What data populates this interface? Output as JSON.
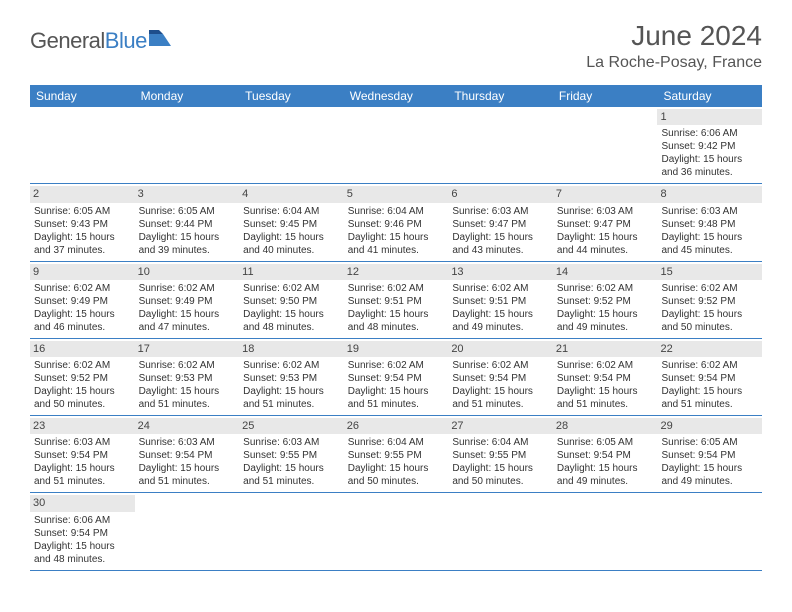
{
  "brand": {
    "name_a": "General",
    "name_b": "Blue"
  },
  "title": "June 2024",
  "location": "La Roche-Posay, France",
  "colors": {
    "header_bg": "#3b7fc4",
    "header_text": "#ffffff",
    "daynum_bg": "#e8e8e8",
    "text": "#333333",
    "title_text": "#555555",
    "row_divider": "#3b7fc4"
  },
  "typography": {
    "title_fontsize": 28,
    "location_fontsize": 16,
    "dow_fontsize": 12,
    "cell_fontsize": 10
  },
  "days_of_week": [
    "Sunday",
    "Monday",
    "Tuesday",
    "Wednesday",
    "Thursday",
    "Friday",
    "Saturday"
  ],
  "weeks": [
    [
      null,
      null,
      null,
      null,
      null,
      null,
      {
        "n": "1",
        "sunrise": "Sunrise: 6:06 AM",
        "sunset": "Sunset: 9:42 PM",
        "d1": "Daylight: 15 hours",
        "d2": "and 36 minutes."
      }
    ],
    [
      {
        "n": "2",
        "sunrise": "Sunrise: 6:05 AM",
        "sunset": "Sunset: 9:43 PM",
        "d1": "Daylight: 15 hours",
        "d2": "and 37 minutes."
      },
      {
        "n": "3",
        "sunrise": "Sunrise: 6:05 AM",
        "sunset": "Sunset: 9:44 PM",
        "d1": "Daylight: 15 hours",
        "d2": "and 39 minutes."
      },
      {
        "n": "4",
        "sunrise": "Sunrise: 6:04 AM",
        "sunset": "Sunset: 9:45 PM",
        "d1": "Daylight: 15 hours",
        "d2": "and 40 minutes."
      },
      {
        "n": "5",
        "sunrise": "Sunrise: 6:04 AM",
        "sunset": "Sunset: 9:46 PM",
        "d1": "Daylight: 15 hours",
        "d2": "and 41 minutes."
      },
      {
        "n": "6",
        "sunrise": "Sunrise: 6:03 AM",
        "sunset": "Sunset: 9:47 PM",
        "d1": "Daylight: 15 hours",
        "d2": "and 43 minutes."
      },
      {
        "n": "7",
        "sunrise": "Sunrise: 6:03 AM",
        "sunset": "Sunset: 9:47 PM",
        "d1": "Daylight: 15 hours",
        "d2": "and 44 minutes."
      },
      {
        "n": "8",
        "sunrise": "Sunrise: 6:03 AM",
        "sunset": "Sunset: 9:48 PM",
        "d1": "Daylight: 15 hours",
        "d2": "and 45 minutes."
      }
    ],
    [
      {
        "n": "9",
        "sunrise": "Sunrise: 6:02 AM",
        "sunset": "Sunset: 9:49 PM",
        "d1": "Daylight: 15 hours",
        "d2": "and 46 minutes."
      },
      {
        "n": "10",
        "sunrise": "Sunrise: 6:02 AM",
        "sunset": "Sunset: 9:49 PM",
        "d1": "Daylight: 15 hours",
        "d2": "and 47 minutes."
      },
      {
        "n": "11",
        "sunrise": "Sunrise: 6:02 AM",
        "sunset": "Sunset: 9:50 PM",
        "d1": "Daylight: 15 hours",
        "d2": "and 48 minutes."
      },
      {
        "n": "12",
        "sunrise": "Sunrise: 6:02 AM",
        "sunset": "Sunset: 9:51 PM",
        "d1": "Daylight: 15 hours",
        "d2": "and 48 minutes."
      },
      {
        "n": "13",
        "sunrise": "Sunrise: 6:02 AM",
        "sunset": "Sunset: 9:51 PM",
        "d1": "Daylight: 15 hours",
        "d2": "and 49 minutes."
      },
      {
        "n": "14",
        "sunrise": "Sunrise: 6:02 AM",
        "sunset": "Sunset: 9:52 PM",
        "d1": "Daylight: 15 hours",
        "d2": "and 49 minutes."
      },
      {
        "n": "15",
        "sunrise": "Sunrise: 6:02 AM",
        "sunset": "Sunset: 9:52 PM",
        "d1": "Daylight: 15 hours",
        "d2": "and 50 minutes."
      }
    ],
    [
      {
        "n": "16",
        "sunrise": "Sunrise: 6:02 AM",
        "sunset": "Sunset: 9:52 PM",
        "d1": "Daylight: 15 hours",
        "d2": "and 50 minutes."
      },
      {
        "n": "17",
        "sunrise": "Sunrise: 6:02 AM",
        "sunset": "Sunset: 9:53 PM",
        "d1": "Daylight: 15 hours",
        "d2": "and 51 minutes."
      },
      {
        "n": "18",
        "sunrise": "Sunrise: 6:02 AM",
        "sunset": "Sunset: 9:53 PM",
        "d1": "Daylight: 15 hours",
        "d2": "and 51 minutes."
      },
      {
        "n": "19",
        "sunrise": "Sunrise: 6:02 AM",
        "sunset": "Sunset: 9:54 PM",
        "d1": "Daylight: 15 hours",
        "d2": "and 51 minutes."
      },
      {
        "n": "20",
        "sunrise": "Sunrise: 6:02 AM",
        "sunset": "Sunset: 9:54 PM",
        "d1": "Daylight: 15 hours",
        "d2": "and 51 minutes."
      },
      {
        "n": "21",
        "sunrise": "Sunrise: 6:02 AM",
        "sunset": "Sunset: 9:54 PM",
        "d1": "Daylight: 15 hours",
        "d2": "and 51 minutes."
      },
      {
        "n": "22",
        "sunrise": "Sunrise: 6:02 AM",
        "sunset": "Sunset: 9:54 PM",
        "d1": "Daylight: 15 hours",
        "d2": "and 51 minutes."
      }
    ],
    [
      {
        "n": "23",
        "sunrise": "Sunrise: 6:03 AM",
        "sunset": "Sunset: 9:54 PM",
        "d1": "Daylight: 15 hours",
        "d2": "and 51 minutes."
      },
      {
        "n": "24",
        "sunrise": "Sunrise: 6:03 AM",
        "sunset": "Sunset: 9:54 PM",
        "d1": "Daylight: 15 hours",
        "d2": "and 51 minutes."
      },
      {
        "n": "25",
        "sunrise": "Sunrise: 6:03 AM",
        "sunset": "Sunset: 9:55 PM",
        "d1": "Daylight: 15 hours",
        "d2": "and 51 minutes."
      },
      {
        "n": "26",
        "sunrise": "Sunrise: 6:04 AM",
        "sunset": "Sunset: 9:55 PM",
        "d1": "Daylight: 15 hours",
        "d2": "and 50 minutes."
      },
      {
        "n": "27",
        "sunrise": "Sunrise: 6:04 AM",
        "sunset": "Sunset: 9:55 PM",
        "d1": "Daylight: 15 hours",
        "d2": "and 50 minutes."
      },
      {
        "n": "28",
        "sunrise": "Sunrise: 6:05 AM",
        "sunset": "Sunset: 9:54 PM",
        "d1": "Daylight: 15 hours",
        "d2": "and 49 minutes."
      },
      {
        "n": "29",
        "sunrise": "Sunrise: 6:05 AM",
        "sunset": "Sunset: 9:54 PM",
        "d1": "Daylight: 15 hours",
        "d2": "and 49 minutes."
      }
    ],
    [
      {
        "n": "30",
        "sunrise": "Sunrise: 6:06 AM",
        "sunset": "Sunset: 9:54 PM",
        "d1": "Daylight: 15 hours",
        "d2": "and 48 minutes."
      },
      null,
      null,
      null,
      null,
      null,
      null
    ]
  ]
}
